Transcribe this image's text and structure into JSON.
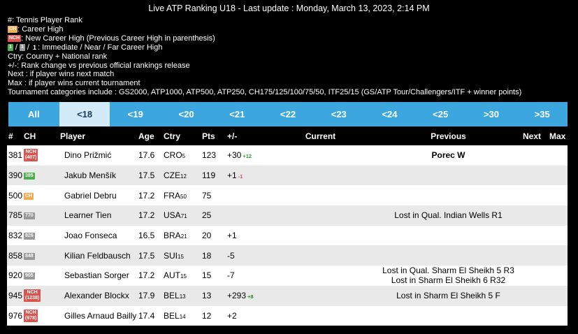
{
  "header": {
    "title": "Live ATP Ranking U18 - Last update : Monday, March 13, 2023, 2:14 PM"
  },
  "legend": [
    {
      "text": "#: Tennis Player Rank"
    },
    {
      "badge": {
        "text": "CH",
        "kind": "ch"
      },
      "text": ": Career High"
    },
    {
      "badge": {
        "text": "NCH",
        "kind": "nch"
      },
      "text": ": New Career High (Previous Career High in parenthesis)"
    },
    {
      "badges": [
        {
          "text": "1",
          "kind": "immediate"
        },
        {
          "text": "1",
          "kind": "near"
        },
        {
          "text": "1",
          "kind": "far"
        }
      ],
      "separator": "/",
      "text": ": Immediate / Near / Far Career High"
    },
    {
      "text": "Ctry: Country + National rank"
    },
    {
      "text": "+/-: Rank change vs previous official rankings release"
    },
    {
      "text": "Next : if player wins next match"
    },
    {
      "text": "Max : if player wins current tournament"
    },
    {
      "text": "Tournament categories include : GS2000, ATP1000, ATP500, ATP250, CH175/125/100/75/50, ITF25/15 (GS/ATP Tour/Challengers/ITF + winner points)"
    }
  ],
  "tabs": [
    "All",
    "<18",
    "<19",
    "<20",
    "<21",
    "<22",
    "<23",
    "<24",
    "<25",
    ">30",
    ">35"
  ],
  "active_tab": 1,
  "table": {
    "columns": {
      "rank": "#",
      "badge": "CH",
      "player": "Player",
      "age": "Age",
      "country": "Ctry",
      "points": "Pts",
      "change": "+/-",
      "current": "Current",
      "previous": "Previous",
      "next": "Next",
      "max": "Max"
    },
    "rows": [
      {
        "rank": "381",
        "badge": {
          "text": "NCH",
          "sub": "(407)",
          "kind": "nch"
        },
        "player": "Dino Prižmić",
        "age": "17.6",
        "country": "CRO",
        "country_rank": "5",
        "points": "123",
        "change": "+30",
        "change_sub": "+12",
        "change_sub_kind": "up",
        "previous": [
          "Porec W"
        ],
        "previous_bold": true
      },
      {
        "rank": "390",
        "badge": {
          "text": "385",
          "kind": "immediate"
        },
        "player": "Jakub Menšík",
        "age": "17.5",
        "country": "CZE",
        "country_rank": "12",
        "points": "119",
        "change": "+1",
        "change_sub": "-1",
        "change_sub_kind": "down"
      },
      {
        "rank": "500",
        "badge": {
          "text": "CH",
          "kind": "ch"
        },
        "player": "Gabriel Debru",
        "age": "17.2",
        "country": "FRA",
        "country_rank": "50",
        "points": "75"
      },
      {
        "rank": "785",
        "badge": {
          "text": "770",
          "kind": "near"
        },
        "player": "Learner Tien",
        "age": "17.2",
        "country": "USA",
        "country_rank": "71",
        "points": "25",
        "previous": [
          "Lost in Qual. Indian Wells R1"
        ]
      },
      {
        "rank": "832",
        "badge": {
          "text": "826",
          "kind": "near"
        },
        "player": "Joao Fonseca",
        "age": "16.5",
        "country": "BRA",
        "country_rank": "21",
        "points": "20",
        "change": "+1"
      },
      {
        "rank": "858",
        "badge": {
          "text": "848",
          "kind": "near"
        },
        "player": "Kilian Feldbausch",
        "age": "17.5",
        "country": "SUI",
        "country_rank": "15",
        "points": "18",
        "change": "-5"
      },
      {
        "rank": "920",
        "badge": {
          "text": "905",
          "kind": "near"
        },
        "player": "Sebastian Sorger",
        "age": "17.2",
        "country": "AUT",
        "country_rank": "15",
        "points": "15",
        "change": "-7",
        "previous": [
          "Lost in Qual. Sharm El Sheikh 5 R3",
          "Lost in Sharm El Sheikh 6 R32"
        ]
      },
      {
        "rank": "945",
        "badge": {
          "text": "NCH",
          "sub": "(1238)",
          "kind": "nch"
        },
        "player": "Alexander Blockx",
        "age": "17.9",
        "country": "BEL",
        "country_rank": "13",
        "points": "13",
        "change": "+293",
        "change_sub": "+8",
        "change_sub_kind": "up",
        "previous": [
          "Lost in Sharm El Sheikh 5 F"
        ]
      },
      {
        "rank": "976",
        "badge": {
          "text": "NCH",
          "sub": "(978)",
          "kind": "nch"
        },
        "player": "Gilles Arnaud Bailly",
        "age": "17.4",
        "country": "BEL",
        "country_rank": "14",
        "points": "12",
        "change": "+2"
      }
    ]
  }
}
